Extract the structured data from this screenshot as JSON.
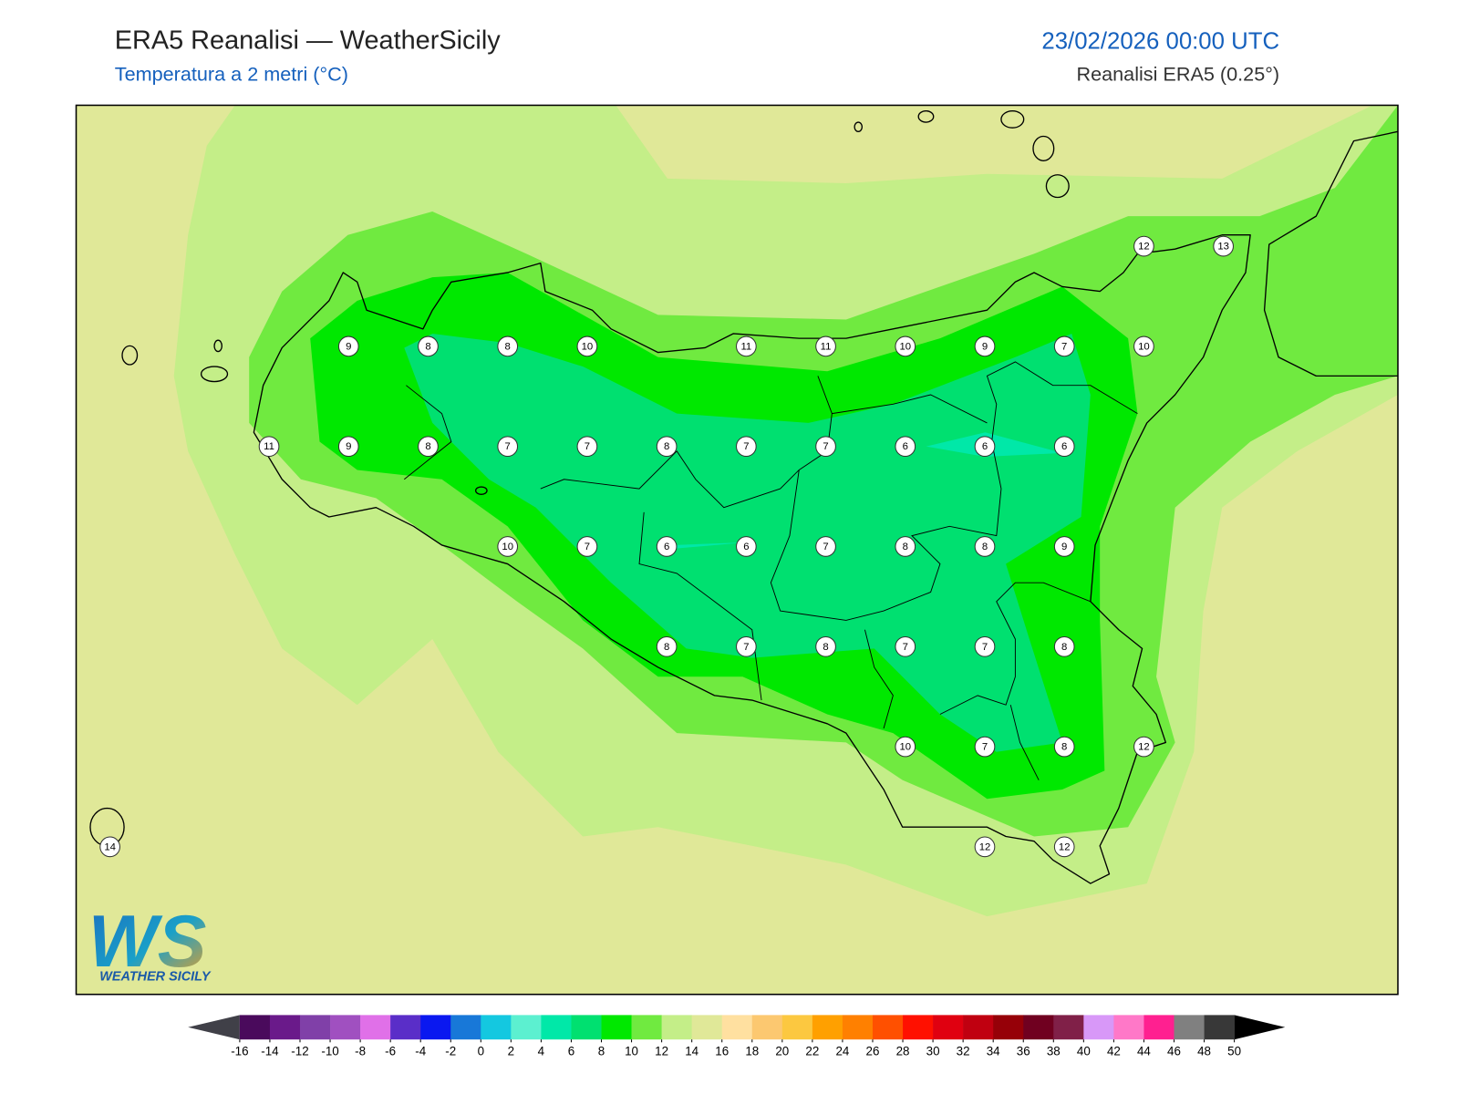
{
  "header": {
    "title": "ERA5 Reanalisi — WeatherSicily",
    "subtitle": "Temperatura a 2 metri (°C)",
    "datetime": "23/02/2026 00:00 UTC",
    "source": "Reanalisi ERA5 (0.25°)"
  },
  "map": {
    "values": [
      [
        null,
        null,
        null,
        null,
        null,
        null,
        null,
        null,
        null,
        null,
        null,
        null,
        null,
        12,
        13
      ],
      [
        null,
        null,
        null,
        9,
        8,
        8,
        10,
        null,
        11,
        11,
        10,
        9,
        7,
        10,
        null
      ],
      [
        null,
        null,
        11,
        9,
        8,
        7,
        7,
        8,
        7,
        7,
        6,
        6,
        6,
        null,
        null
      ],
      [
        null,
        null,
        null,
        null,
        null,
        10,
        7,
        6,
        6,
        7,
        8,
        8,
        9,
        null,
        null
      ],
      [
        null,
        null,
        null,
        null,
        null,
        null,
        null,
        8,
        7,
        8,
        7,
        7,
        8,
        null,
        null
      ],
      [
        null,
        null,
        null,
        null,
        null,
        null,
        null,
        null,
        null,
        null,
        10,
        7,
        8,
        12,
        null
      ],
      [
        14,
        null,
        null,
        null,
        null,
        null,
        null,
        null,
        null,
        null,
        null,
        12,
        12,
        null,
        null
      ]
    ]
  },
  "colorbar": {
    "ticks": [
      -16,
      -14,
      -12,
      -10,
      -8,
      -6,
      -4,
      -2,
      0,
      2,
      4,
      6,
      8,
      10,
      12,
      14,
      16,
      18,
      20,
      22,
      24,
      26,
      28,
      30,
      32,
      34,
      36,
      38,
      40,
      42,
      44,
      46,
      48,
      50
    ],
    "colors": [
      "#4a0a5c",
      "#6a1a8a",
      "#8040a8",
      "#a050c0",
      "#e070e8",
      "#5a2ec8",
      "#0a18f0",
      "#1878d8",
      "#14c8e0",
      "#5cf0d0",
      "#00e8a8",
      "#00e070",
      "#00e800",
      "#70ea40",
      "#c4ee88",
      "#e0e898",
      "#ffe0a0",
      "#fcc870",
      "#fcc840",
      "#ffa000",
      "#ff8000",
      "#ff5000",
      "#ff1000",
      "#e00010",
      "#c00010",
      "#960008",
      "#700020",
      "#802048",
      "#d898f8",
      "#ff78c8",
      "#ff2090",
      "#808080",
      "#383838"
    ],
    "under_color": "#404048",
    "over_color": "#000000"
  },
  "logo": {
    "mark": "WS",
    "text": "WEATHER SICILY"
  }
}
